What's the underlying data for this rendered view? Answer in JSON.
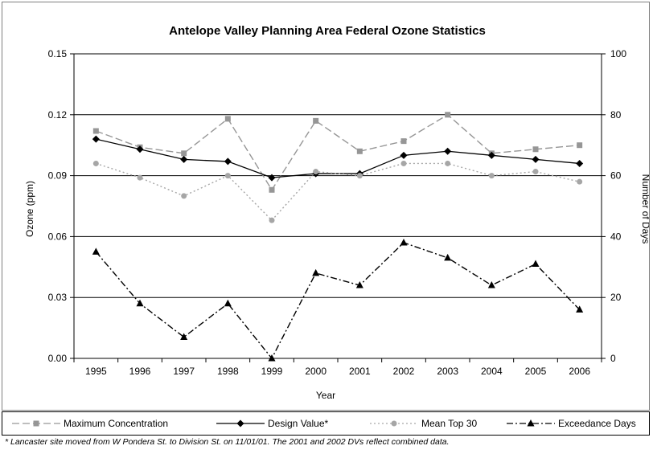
{
  "chart_data": {
    "type": "line",
    "title": "Antelope Valley Planning Area Federal Ozone Statistics",
    "xlabel": "Year",
    "ylabel": "Ozone (ppm)",
    "y2label": "Number of Days",
    "categories": [
      "1995",
      "1996",
      "1997",
      "1998",
      "1999",
      "2000",
      "2001",
      "2002",
      "2003",
      "2004",
      "2005",
      "2006"
    ],
    "ylim": [
      0,
      0.15
    ],
    "y2lim": [
      0,
      100
    ],
    "yticks": [
      "0.00",
      "0.03",
      "0.06",
      "0.09",
      "0.12",
      "0.15"
    ],
    "y2ticks": [
      "0",
      "20",
      "40",
      "60",
      "80",
      "100"
    ],
    "grid": "horizontal major",
    "legend_position": "bottom",
    "series": [
      {
        "name": "Maximum Concentration",
        "axis": "left",
        "color": "#969696",
        "dash": "dashed",
        "marker": "square",
        "values": [
          0.112,
          0.104,
          0.101,
          0.118,
          0.083,
          0.117,
          0.102,
          0.107,
          0.12,
          0.101,
          0.103,
          0.105
        ]
      },
      {
        "name": "Design Value*",
        "axis": "left",
        "color": "#000000",
        "dash": "solid",
        "marker": "diamond",
        "values": [
          0.108,
          0.103,
          0.098,
          0.097,
          0.089,
          0.091,
          0.091,
          0.1,
          0.102,
          0.1,
          0.098,
          0.096
        ]
      },
      {
        "name": "Mean Top 30",
        "axis": "left",
        "color": "#a6a6a6",
        "dash": "dotted",
        "marker": "circle",
        "values": [
          0.096,
          0.089,
          0.08,
          0.09,
          0.068,
          0.092,
          0.09,
          0.096,
          0.096,
          0.09,
          0.092,
          0.087
        ]
      },
      {
        "name": "Exceedance Days",
        "axis": "right",
        "color": "#000000",
        "dash": "dashdot",
        "marker": "triangle",
        "values": [
          35,
          18,
          7,
          18,
          0,
          28,
          24,
          38,
          33,
          24,
          31,
          16
        ]
      }
    ]
  },
  "footnote": "* Lancaster site moved from W Pondera St. to Division St. on 11/01/01.  The 2001 and 2002 DVs reflect combined data."
}
